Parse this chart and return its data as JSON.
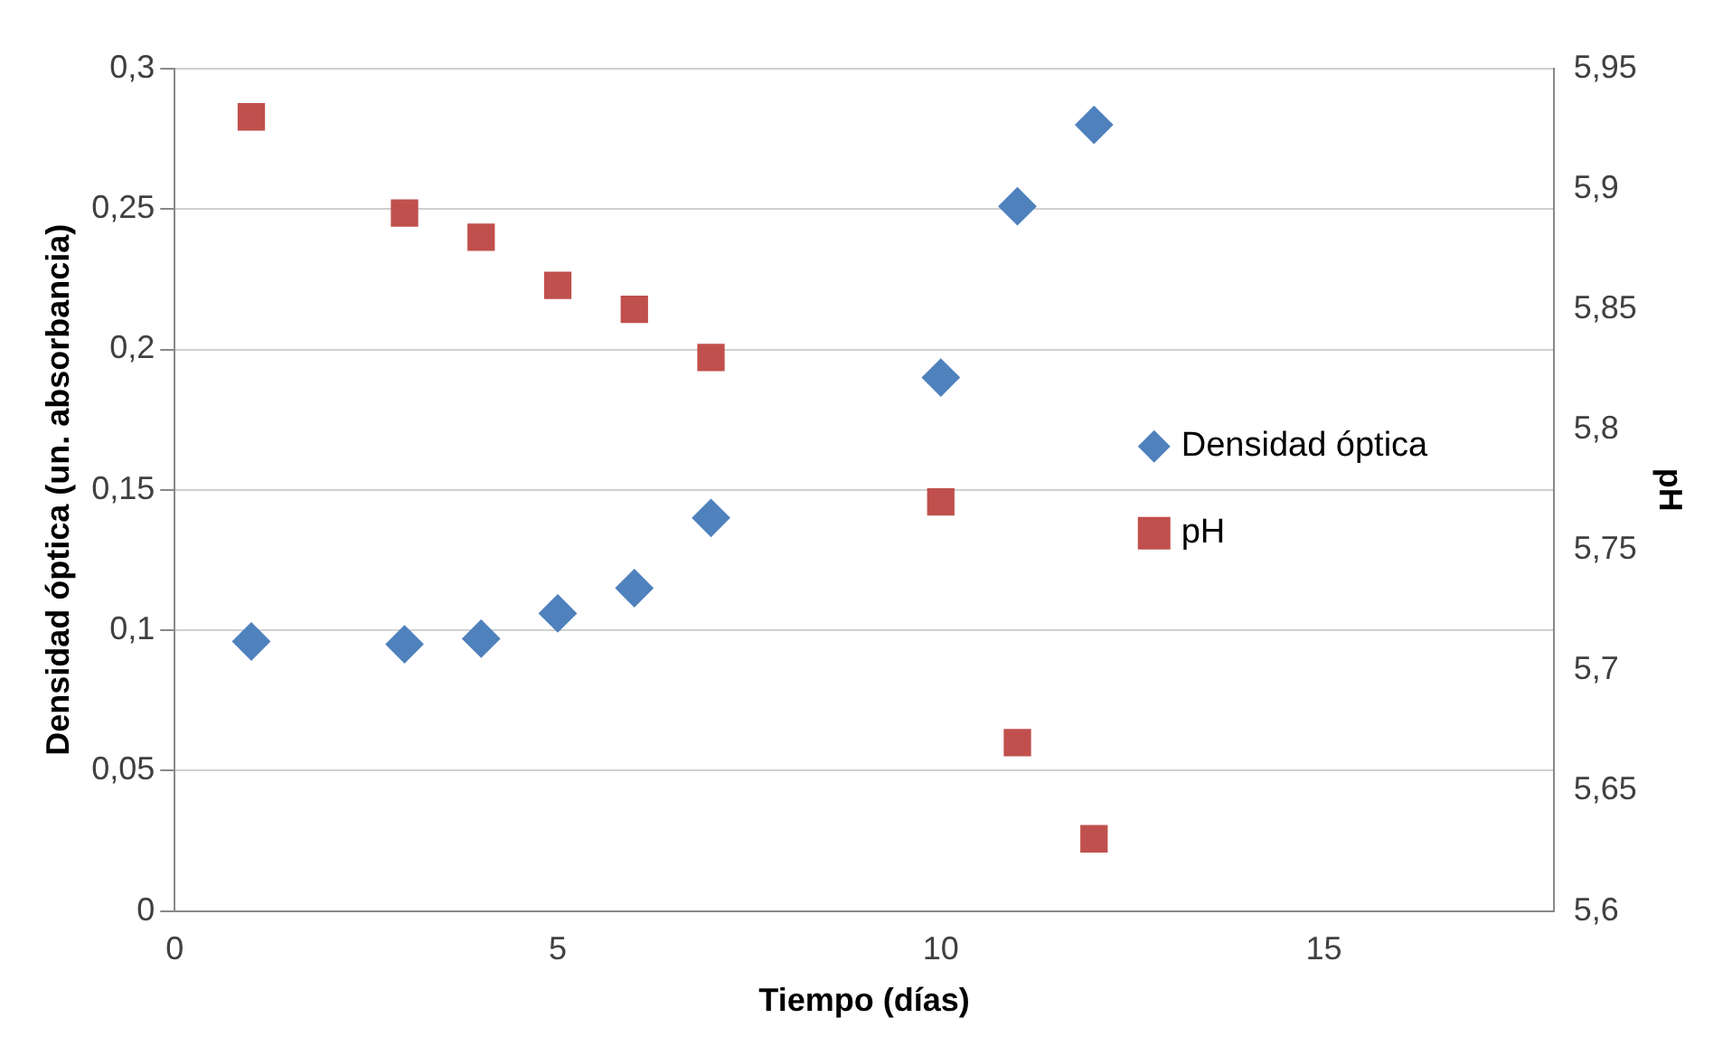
{
  "chart_data": {
    "type": "scatter",
    "xlabel": "Tiempo (días)",
    "ylabel": "Densidad óptica (un. absorbancia)",
    "y2label": "pH",
    "xlim": [
      0,
      18
    ],
    "xticks": [
      0,
      5,
      10,
      15
    ],
    "ylim": [
      0,
      0.3
    ],
    "yticks": [
      0,
      {
        "value": 0.05,
        "label": "0,05"
      },
      {
        "value": 0.1,
        "label": "0,1"
      },
      {
        "value": 0.15,
        "label": "0,15"
      },
      {
        "value": 0.2,
        "label": "0,2"
      },
      {
        "value": 0.25,
        "label": "0,25"
      },
      {
        "value": 0.3,
        "label": "0,3"
      }
    ],
    "y2lim": [
      5.6,
      5.95
    ],
    "y2ticks": [
      {
        "value": 5.6,
        "label": "5,6"
      },
      {
        "value": 5.65,
        "label": "5,65"
      },
      {
        "value": 5.7,
        "label": "5,7"
      },
      {
        "value": 5.75,
        "label": "5,75"
      },
      {
        "value": 5.8,
        "label": "5,8"
      },
      {
        "value": 5.85,
        "label": "5,85"
      },
      {
        "value": 5.9,
        "label": "5,9"
      },
      {
        "value": 5.95,
        "label": "5,95"
      }
    ],
    "x": [
      1,
      3,
      4,
      5,
      6,
      7,
      10,
      11,
      12
    ],
    "series": [
      {
        "name": "Densidad óptica",
        "color": "#4f81bd",
        "marker": "diamond",
        "values": [
          0.096,
          0.095,
          0.097,
          0.106,
          0.115,
          0.14,
          0.19,
          0.251,
          0.28
        ]
      },
      {
        "name": "pH",
        "color": "#c0504d",
        "marker": "square",
        "axis": "y2",
        "values": [
          5.93,
          5.89,
          5.88,
          5.86,
          5.85,
          5.83,
          5.77,
          5.67,
          5.63
        ]
      }
    ],
    "grid": "y",
    "legend": "right"
  }
}
